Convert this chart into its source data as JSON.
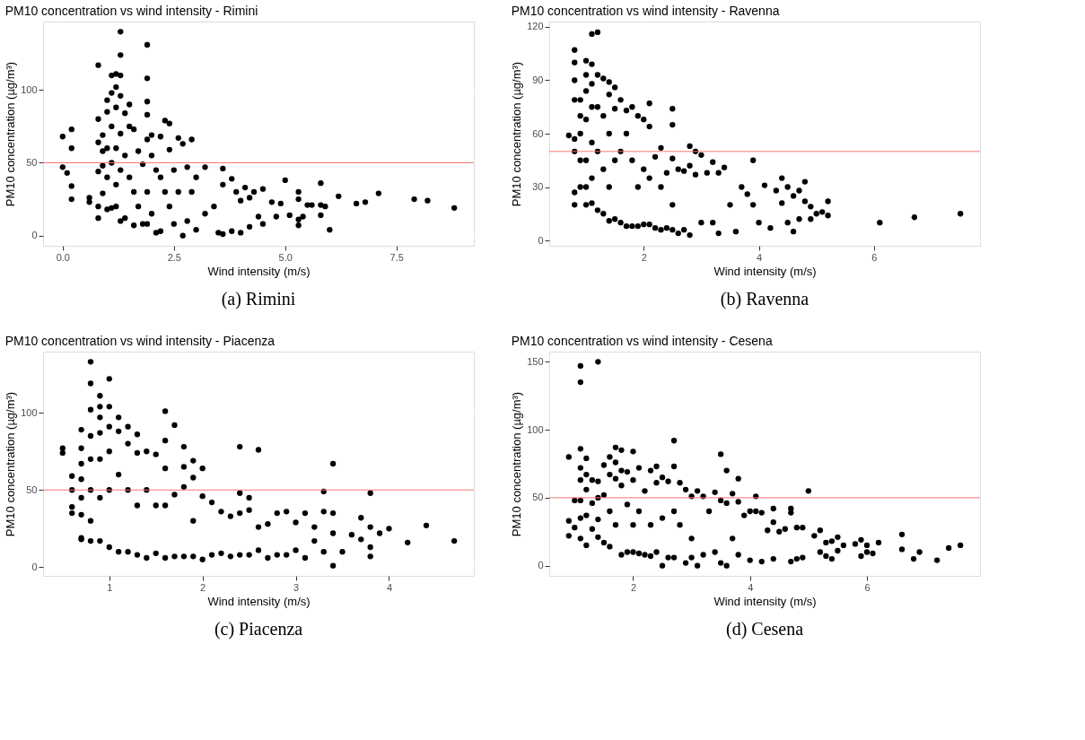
{
  "chart_data": [
    {
      "type": "scatter",
      "title": "PM10 concentration vs wind intensity - Rimini",
      "xlabel": "Wind intensity (m/s)",
      "ylabel": "PM10 concentration (µg/m³)",
      "annotations": [
        "(a) Rimini"
      ],
      "xlim": [
        -0.44,
        9.24
      ],
      "ylim": [
        -7,
        147
      ],
      "xticks": [
        {
          "value": 0,
          "label": "0.0"
        },
        2.5,
        {
          "value": 5,
          "label": "5.0"
        },
        7.5
      ],
      "yticks": [
        0,
        50,
        100
      ],
      "grid": true,
      "legend": false,
      "marker": "circle",
      "ref_lines": [
        {
          "axis": "y",
          "value": 50,
          "color": "#f8766d"
        }
      ],
      "series": [
        {
          "color": "#000000",
          "x": [
            0,
            0,
            0.1,
            0.2,
            0.2,
            0.2,
            0.2,
            0.6,
            0.6,
            0.8,
            0.8,
            0.8,
            0.8,
            0.8,
            0.8,
            0.9,
            0.9,
            0.9,
            0.9,
            1.0,
            1.0,
            1.0,
            1.0,
            1.0,
            1.1,
            1.1,
            1.1,
            1.1,
            1.1,
            1.2,
            1.2,
            1.2,
            1.2,
            1.2,
            1.2,
            1.3,
            1.3,
            1.3,
            1.3,
            1.3,
            1.3,
            1.3,
            1.4,
            1.4,
            1.4,
            1.5,
            1.5,
            1.5,
            1.6,
            1.6,
            1.6,
            1.7,
            1.7,
            1.8,
            1.8,
            1.9,
            1.9,
            1.9,
            1.9,
            1.9,
            1.9,
            1.9,
            2.0,
            2.0,
            2.0,
            2.1,
            2.1,
            2.2,
            2.2,
            2.2,
            2.3,
            2.3,
            2.4,
            2.4,
            2.4,
            2.5,
            2.5,
            2.6,
            2.6,
            2.7,
            2.7,
            2.8,
            2.8,
            2.9,
            2.9,
            3.0,
            3.0,
            3.2,
            3.2,
            3.4,
            3.5,
            3.6,
            3.6,
            3.6,
            3.8,
            3.8,
            3.9,
            4.0,
            4.0,
            4.1,
            4.2,
            4.2,
            4.3,
            4.4,
            4.5,
            4.5,
            4.7,
            4.8,
            4.9,
            5.0,
            5.1,
            5.3,
            5.3,
            5.3,
            5.3,
            5.4,
            5.5,
            5.6,
            5.8,
            5.8,
            5.8,
            5.9,
            6.0,
            6.2,
            6.6,
            6.8,
            7.1,
            7.9,
            8.2,
            8.8
          ],
          "values": [
            68,
            47,
            43,
            73,
            60,
            34,
            25,
            26,
            23,
            117,
            80,
            64,
            44,
            20,
            12,
            69,
            58,
            48,
            29,
            93,
            85,
            60,
            40,
            18,
            110,
            98,
            75,
            50,
            19,
            111,
            102,
            88,
            60,
            35,
            20,
            140,
            124,
            110,
            96,
            70,
            45,
            10,
            84,
            55,
            12,
            90,
            75,
            40,
            73,
            30,
            7,
            58,
            20,
            49,
            8,
            131,
            108,
            92,
            83,
            66,
            30,
            8,
            69,
            55,
            15,
            45,
            2,
            68,
            40,
            3,
            79,
            30,
            77,
            59,
            20,
            45,
            8,
            67,
            30,
            63,
            0,
            47,
            10,
            66,
            30,
            40,
            4,
            47,
            15,
            20,
            2,
            46,
            35,
            1,
            39,
            3,
            30,
            24,
            2,
            33,
            26,
            6,
            30,
            13,
            32,
            8,
            23,
            13,
            22,
            38,
            14,
            30,
            25,
            11,
            7,
            13,
            21,
            21,
            36,
            21,
            14,
            20,
            4,
            27,
            22,
            23,
            29,
            25,
            24,
            19
          ]
        }
      ]
    },
    {
      "type": "scatter",
      "title": "PM10 concentration vs wind intensity - Ravenna",
      "xlabel": "Wind intensity (m/s)",
      "ylabel": "PM10 concentration (µg/m³)",
      "annotations": [
        "(b) Ravenna"
      ],
      "xlim": [
        0.36,
        7.84
      ],
      "ylim": [
        -3,
        123
      ],
      "xticks": [
        2,
        4,
        6
      ],
      "yticks": [
        0,
        30,
        60,
        90,
        120
      ],
      "grid": true,
      "legend": false,
      "marker": "circle",
      "ref_lines": [
        {
          "axis": "y",
          "value": 50,
          "color": "#f8766d"
        }
      ],
      "series": [
        {
          "color": "#000000",
          "x": [
            0.7,
            0.8,
            0.8,
            0.8,
            0.8,
            0.8,
            0.8,
            0.8,
            0.8,
            0.9,
            0.9,
            0.9,
            0.9,
            0.9,
            1.0,
            1.0,
            1.0,
            1.0,
            1.0,
            1.0,
            1.0,
            1.1,
            1.1,
            1.1,
            1.1,
            1.1,
            1.1,
            1.1,
            1.2,
            1.2,
            1.2,
            1.2,
            1.2,
            1.3,
            1.3,
            1.3,
            1.3,
            1.4,
            1.4,
            1.4,
            1.4,
            1.4,
            1.5,
            1.5,
            1.5,
            1.5,
            1.6,
            1.6,
            1.6,
            1.7,
            1.7,
            1.7,
            1.8,
            1.8,
            1.8,
            1.9,
            1.9,
            1.9,
            2.0,
            2.0,
            2.0,
            2.1,
            2.1,
            2.1,
            2.1,
            2.2,
            2.2,
            2.3,
            2.3,
            2.3,
            2.4,
            2.4,
            2.5,
            2.5,
            2.5,
            2.5,
            2.5,
            2.6,
            2.6,
            2.7,
            2.7,
            2.8,
            2.8,
            2.8,
            2.9,
            2.9,
            3.0,
            3.0,
            3.1,
            3.2,
            3.2,
            3.3,
            3.3,
            3.4,
            3.5,
            3.6,
            3.7,
            3.8,
            3.9,
            3.9,
            4.0,
            4.1,
            4.2,
            4.3,
            4.4,
            4.4,
            4.5,
            4.5,
            4.6,
            4.6,
            4.7,
            4.7,
            4.8,
            4.8,
            4.9,
            4.9,
            5.0,
            5.1,
            5.2,
            5.2,
            6.1,
            6.7,
            7.5
          ],
          "values": [
            59,
            107,
            100,
            90,
            79,
            57,
            50,
            27,
            20,
            79,
            70,
            60,
            45,
            30,
            101,
            93,
            84,
            68,
            45,
            30,
            20,
            116,
            99,
            88,
            75,
            55,
            35,
            21,
            117,
            93,
            75,
            50,
            17,
            91,
            70,
            40,
            15,
            89,
            82,
            60,
            30,
            11,
            86,
            74,
            45,
            12,
            79,
            50,
            10,
            73,
            60,
            8,
            75,
            45,
            8,
            70,
            30,
            8,
            68,
            40,
            9,
            77,
            64,
            35,
            9,
            47,
            7,
            52,
            30,
            6,
            38,
            7,
            74,
            65,
            46,
            20,
            6,
            40,
            4,
            39,
            6,
            53,
            42,
            3,
            50,
            37,
            48,
            10,
            38,
            44,
            10,
            38,
            4,
            41,
            20,
            5,
            30,
            26,
            45,
            20,
            10,
            31,
            7,
            28,
            35,
            21,
            30,
            10,
            25,
            5,
            28,
            12,
            33,
            22,
            19,
            12,
            15,
            16,
            22,
            14,
            10,
            13,
            15
          ]
        }
      ]
    },
    {
      "type": "scatter",
      "title": "PM10 concentration vs wind intensity - Piacenza",
      "xlabel": "Wind intensity (m/s)",
      "ylabel": "PM10 concentration (µg/m³)",
      "annotations": [
        "(c) Piacenza"
      ],
      "xlim": [
        0.29,
        4.91
      ],
      "ylim": [
        -5.6,
        139.6
      ],
      "xticks": [
        1,
        2,
        3,
        4
      ],
      "yticks": [
        0,
        50,
        100
      ],
      "grid": true,
      "legend": false,
      "marker": "circle",
      "ref_lines": [
        {
          "axis": "y",
          "value": 50,
          "color": "#f8766d"
        }
      ],
      "series": [
        {
          "color": "#000000",
          "x": [
            0.5,
            0.5,
            0.6,
            0.6,
            0.6,
            0.6,
            0.7,
            0.7,
            0.7,
            0.7,
            0.7,
            0.7,
            0.7,
            0.7,
            0.8,
            0.8,
            0.8,
            0.8,
            0.8,
            0.8,
            0.8,
            0.8,
            0.9,
            0.9,
            0.9,
            0.9,
            0.9,
            0.9,
            0.9,
            1.0,
            1.0,
            1.0,
            1.0,
            1.0,
            1.0,
            1.1,
            1.1,
            1.1,
            1.1,
            1.2,
            1.2,
            1.2,
            1.2,
            1.3,
            1.3,
            1.3,
            1.3,
            1.4,
            1.4,
            1.4,
            1.5,
            1.5,
            1.5,
            1.6,
            1.6,
            1.6,
            1.6,
            1.6,
            1.7,
            1.7,
            1.7,
            1.8,
            1.8,
            1.8,
            1.8,
            1.9,
            1.9,
            1.9,
            1.9,
            2.0,
            2.0,
            2.0,
            2.1,
            2.1,
            2.2,
            2.2,
            2.3,
            2.3,
            2.4,
            2.4,
            2.4,
            2.4,
            2.5,
            2.5,
            2.5,
            2.6,
            2.6,
            2.6,
            2.7,
            2.7,
            2.8,
            2.8,
            2.9,
            2.9,
            3.0,
            3.0,
            3.1,
            3.1,
            3.2,
            3.2,
            3.3,
            3.3,
            3.3,
            3.4,
            3.4,
            3.4,
            3.4,
            3.5,
            3.6,
            3.7,
            3.7,
            3.8,
            3.8,
            3.8,
            3.8,
            3.9,
            4.0,
            4.2,
            4.4,
            4.7
          ],
          "values": [
            77,
            74,
            59,
            50,
            39,
            35,
            89,
            77,
            67,
            57,
            45,
            34,
            19,
            18,
            133,
            119,
            102,
            85,
            70,
            50,
            30,
            17,
            111,
            104,
            97,
            87,
            70,
            45,
            17,
            122,
            104,
            91,
            75,
            50,
            13,
            97,
            88,
            60,
            10,
            91,
            80,
            50,
            10,
            86,
            74,
            40,
            8,
            75,
            50,
            6,
            73,
            40,
            9,
            101,
            82,
            64,
            40,
            6,
            92,
            47,
            7,
            78,
            65,
            52,
            7,
            69,
            58,
            30,
            7,
            64,
            46,
            5,
            42,
            8,
            36,
            9,
            33,
            7,
            78,
            48,
            35,
            8,
            45,
            37,
            8,
            76,
            26,
            11,
            28,
            6,
            35,
            8,
            36,
            8,
            29,
            11,
            35,
            6,
            26,
            17,
            49,
            36,
            10,
            67,
            35,
            22,
            1,
            10,
            21,
            32,
            18,
            48,
            26,
            13,
            7,
            22,
            25,
            16,
            27,
            17
          ]
        }
      ]
    },
    {
      "type": "scatter",
      "title": "PM10 concentration vs wind intensity - Cesena",
      "xlabel": "Wind intensity (m/s)",
      "ylabel": "PM10 concentration (µg/m³)",
      "annotations": [
        "(d) Cesena"
      ],
      "xlim": [
        0.565,
        7.935
      ],
      "ylim": [
        -7.5,
        157.5
      ],
      "xticks": [
        2,
        4,
        6
      ],
      "yticks": [
        0,
        50,
        100,
        150
      ],
      "grid": true,
      "legend": false,
      "marker": "circle",
      "ref_lines": [
        {
          "axis": "y",
          "value": 50,
          "color": "#f8766d"
        }
      ],
      "series": [
        {
          "color": "#000000",
          "x": [
            0.9,
            0.9,
            0.9,
            1.0,
            1.0,
            1.1,
            1.1,
            1.1,
            1.1,
            1.1,
            1.1,
            1.1,
            1.1,
            1.2,
            1.2,
            1.2,
            1.2,
            1.2,
            1.3,
            1.3,
            1.3,
            1.4,
            1.4,
            1.4,
            1.4,
            1.4,
            1.5,
            1.5,
            1.5,
            1.6,
            1.6,
            1.6,
            1.6,
            1.7,
            1.7,
            1.7,
            1.7,
            1.8,
            1.8,
            1.8,
            1.8,
            1.9,
            1.9,
            1.9,
            2.0,
            2.0,
            2.0,
            2.0,
            2.1,
            2.1,
            2.1,
            2.2,
            2.2,
            2.3,
            2.3,
            2.3,
            2.4,
            2.4,
            2.4,
            2.5,
            2.5,
            2.5,
            2.6,
            2.6,
            2.7,
            2.7,
            2.7,
            2.7,
            2.8,
            2.8,
            2.9,
            2.9,
            3.0,
            3.0,
            3.0,
            3.1,
            3.1,
            3.2,
            3.2,
            3.3,
            3.4,
            3.4,
            3.5,
            3.5,
            3.5,
            3.6,
            3.6,
            3.6,
            3.7,
            3.7,
            3.8,
            3.8,
            3.8,
            3.9,
            4.0,
            4.0,
            4.1,
            4.1,
            4.2,
            4.2,
            4.3,
            4.4,
            4.4,
            4.4,
            4.5,
            4.6,
            4.7,
            4.7,
            4.7,
            4.8,
            4.8,
            4.9,
            4.9,
            5.0,
            5.1,
            5.2,
            5.2,
            5.3,
            5.3,
            5.4,
            5.4,
            5.5,
            5.5,
            5.6,
            5.8,
            5.9,
            5.9,
            6.0,
            6.0,
            6.1,
            6.2,
            6.6,
            6.6,
            6.8,
            6.9,
            7.2,
            7.4,
            7.6
          ],
          "values": [
            80,
            33,
            22,
            48,
            28,
            147,
            135,
            86,
            72,
            63,
            48,
            35,
            20,
            79,
            67,
            56,
            37,
            15,
            63,
            46,
            27,
            150,
            62,
            50,
            34,
            21,
            74,
            52,
            17,
            80,
            67,
            40,
            14,
            87,
            76,
            64,
            30,
            85,
            70,
            59,
            8,
            69,
            45,
            10,
            84,
            63,
            30,
            10,
            72,
            40,
            9,
            55,
            8,
            70,
            30,
            7,
            73,
            61,
            10,
            65,
            35,
            0,
            62,
            6,
            92,
            73,
            40,
            6,
            61,
            30,
            56,
            2,
            51,
            20,
            6,
            55,
            0,
            51,
            8,
            40,
            54,
            10,
            82,
            48,
            2,
            70,
            46,
            0,
            53,
            20,
            64,
            47,
            8,
            37,
            40,
            4,
            51,
            40,
            39,
            3,
            26,
            42,
            32,
            5,
            25,
            27,
            42,
            39,
            3,
            28,
            5,
            28,
            6,
            55,
            22,
            26,
            10,
            17,
            7,
            18,
            5,
            21,
            11,
            15,
            16,
            19,
            7,
            15,
            10,
            9,
            17,
            23,
            12,
            5,
            10,
            4,
            13,
            15
          ]
        }
      ]
    }
  ]
}
